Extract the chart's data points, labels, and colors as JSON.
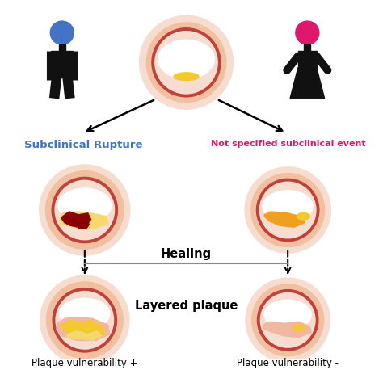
{
  "bg_color": "#ffffff",
  "male_color": "#111111",
  "female_color": "#111111",
  "male_head_color": "#4472c4",
  "female_head_color": "#e0186c",
  "label_male": "Subclinical Rupture",
  "label_female": "Not specified subclinical event",
  "label_male_color": "#4472c4",
  "label_female_color": "#e0186c",
  "label_healing": "Healing",
  "label_layered": "Layered plaque",
  "label_vuln_plus": "Plaque vulnerability +",
  "label_vuln_minus": "Plaque vulnerability -",
  "vessel_outer": "#f7ddd0",
  "vessel_mid": "#f0c0a0",
  "vessel_ring": "#c0403a",
  "vessel_inner_fill": "#f7ddd0",
  "lumen_white": "#ffffff",
  "plaque_yellow": "#f5c830",
  "plaque_yellow_light": "#f5d870",
  "plaque_dark_red": "#8b0000",
  "plaque_pink": "#f0b8a0",
  "plaque_orange": "#f0a020"
}
